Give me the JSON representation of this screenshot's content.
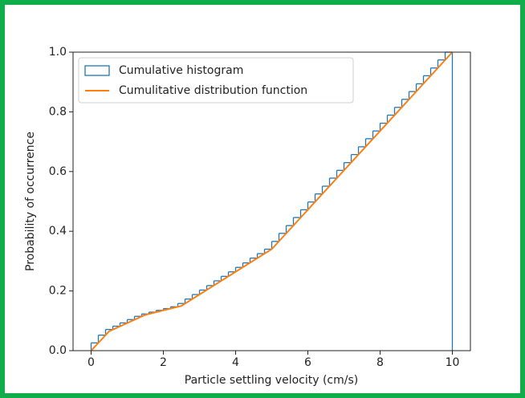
{
  "chart_data": {
    "type": "histogram",
    "xlabel": "Particle settling velocity (cm/s)",
    "ylabel": "Probability of occurrence",
    "xlim": [
      -0.5,
      10.5
    ],
    "ylim": [
      0,
      1
    ],
    "xticks": [
      0,
      2,
      4,
      6,
      8,
      10
    ],
    "yticks": [
      {
        "value": 0,
        "label": "0.0"
      },
      0.2,
      0.4,
      0.6,
      0.8,
      {
        "value": 1,
        "label": "1.0"
      }
    ],
    "legend": "upper-left",
    "series": [
      {
        "name": "Cumulative histogram",
        "type": "step-histogram",
        "color": "#1f77b4",
        "bins": [
          0,
          0.2,
          0.4,
          0.6,
          0.8,
          1.0,
          1.2,
          1.4,
          1.6,
          1.8,
          2.0,
          2.2,
          2.4,
          2.6,
          2.8,
          3.0,
          3.2,
          3.4,
          3.6,
          3.8,
          4.0,
          4.2,
          4.4,
          4.6,
          4.8,
          5.0,
          5.2,
          5.4,
          5.6,
          5.8,
          6.0,
          6.2,
          6.4,
          6.6,
          6.8,
          7.0,
          7.2,
          7.4,
          7.6,
          7.8,
          8.0,
          8.2,
          8.4,
          8.6,
          8.8,
          9.0,
          9.2,
          9.4,
          9.6,
          9.8,
          10.0
        ],
        "values": [
          0.026,
          0.052,
          0.071,
          0.082,
          0.093,
          0.104,
          0.115,
          0.123,
          0.129,
          0.135,
          0.141,
          0.147,
          0.158,
          0.173,
          0.188,
          0.203,
          0.218,
          0.234,
          0.249,
          0.264,
          0.279,
          0.294,
          0.31,
          0.325,
          0.34,
          0.366,
          0.393,
          0.419,
          0.446,
          0.472,
          0.498,
          0.525,
          0.551,
          0.578,
          0.604,
          0.63,
          0.657,
          0.683,
          0.71,
          0.736,
          0.762,
          0.789,
          0.815,
          0.842,
          0.868,
          0.894,
          0.921,
          0.947,
          0.974,
          1.0
        ]
      },
      {
        "name": "Cumulitative distribution function",
        "type": "line",
        "color": "#ff7f0e",
        "x": [
          0,
          0.5,
          1.5,
          2.5,
          5,
          10
        ],
        "values": [
          0,
          0.065,
          0.12,
          0.15,
          0.34,
          1.0
        ]
      }
    ]
  }
}
